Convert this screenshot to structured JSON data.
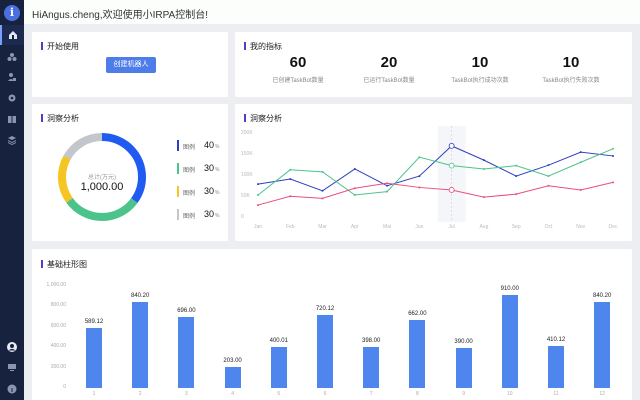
{
  "header": {
    "title": "HiAngus.cheng,欢迎使用小IRPA控制台!"
  },
  "sidebar": {
    "logo": "i",
    "items": [
      {
        "name": "home-icon",
        "active": true
      },
      {
        "name": "robot-group-icon",
        "active": false
      },
      {
        "name": "user-task-icon",
        "active": false
      },
      {
        "name": "settings-icon",
        "active": false
      },
      {
        "name": "package-icon",
        "active": false
      },
      {
        "name": "layers-icon",
        "active": false
      }
    ],
    "bottom_items": [
      {
        "name": "user-avatar-icon"
      },
      {
        "name": "monitor-icon"
      },
      {
        "name": "info-icon"
      }
    ]
  },
  "start_card": {
    "title": "开始使用",
    "create_button": "创建机器人"
  },
  "metrics_card": {
    "title": "我的指标",
    "items": [
      {
        "value": "60",
        "label": "已创建TaskBot数量"
      },
      {
        "value": "20",
        "label": "已运行TaskBot数量"
      },
      {
        "value": "10",
        "label": "TaskBot执行成功次数"
      },
      {
        "value": "10",
        "label": "TaskBot执行失败次数"
      }
    ]
  },
  "donut_card": {
    "title": "洞察分析",
    "center_label": "总计(万元)",
    "center_value": "1,000.00",
    "legend": [
      {
        "name": "图例",
        "value": "40",
        "unit": "%",
        "color": "#1f5bf0"
      },
      {
        "name": "图例",
        "value": "30",
        "unit": "%",
        "color": "#4cc38a"
      },
      {
        "name": "图例",
        "value": "30",
        "unit": "%",
        "color": "#f6c523"
      },
      {
        "name": "图例",
        "value": "30",
        "unit": "%",
        "color": "#c3c6cc"
      }
    ]
  },
  "line_card": {
    "title": "洞察分析"
  },
  "bar_card": {
    "title": "基础柱形图"
  },
  "chart_data": [
    {
      "type": "pie",
      "title": "洞察分析",
      "categories": [
        "图例",
        "图例",
        "图例",
        "图例"
      ],
      "values": [
        40,
        30,
        30,
        30
      ],
      "colors": [
        "#1f5bf0",
        "#4cc38a",
        "#f6c523",
        "#c3c6cc"
      ],
      "center_label": "总计(万元)",
      "center_value": "1,000.00"
    },
    {
      "type": "line",
      "title": "洞察分析",
      "categories": [
        "Jan",
        "Feb",
        "Mar",
        "Apr",
        "Mai",
        "Jun",
        "Jul",
        "Aug",
        "Sep",
        "Oct",
        "Nov",
        "Dec"
      ],
      "yticks": [
        "0",
        "50K",
        "100K",
        "150K",
        "200K"
      ],
      "ylim": [
        0,
        200000
      ],
      "series": [
        {
          "name": "series-blue",
          "color": "#2f3fbf",
          "values": [
            76000,
            88000,
            60000,
            112000,
            72000,
            95000,
            167000,
            133000,
            95000,
            121000,
            152000,
            143000
          ]
        },
        {
          "name": "series-green",
          "color": "#4cc38a",
          "values": [
            50000,
            110000,
            105000,
            50000,
            58000,
            140000,
            120000,
            112000,
            120000,
            95000,
            128000,
            160000
          ]
        },
        {
          "name": "series-pink",
          "color": "#e8507a",
          "values": [
            26000,
            47000,
            42000,
            66000,
            78000,
            68000,
            62000,
            45000,
            52000,
            72000,
            62000,
            80000
          ]
        }
      ],
      "highlight_index": 6
    },
    {
      "type": "bar",
      "title": "基础柱形图",
      "categories": [
        "1",
        "2",
        "3",
        "4",
        "5",
        "6",
        "7",
        "8",
        "9",
        "10",
        "11",
        "12"
      ],
      "values": [
        589.12,
        840.2,
        696.0,
        203.0,
        400.01,
        720.12,
        398.0,
        662.0,
        390.0,
        910.0,
        410.12,
        840.2
      ],
      "labels": [
        "589.12",
        "840.20",
        "696.00",
        "203.00",
        "400.01",
        "720.12",
        "398.00",
        "662.00",
        "390.00",
        "910.00",
        "410.12",
        "840.20"
      ],
      "yticks": [
        "0",
        "200.00",
        "400.00",
        "600.00",
        "800.00",
        "1,000.00"
      ],
      "ylim": [
        0,
        1000
      ],
      "color": "#4e86ee"
    }
  ]
}
